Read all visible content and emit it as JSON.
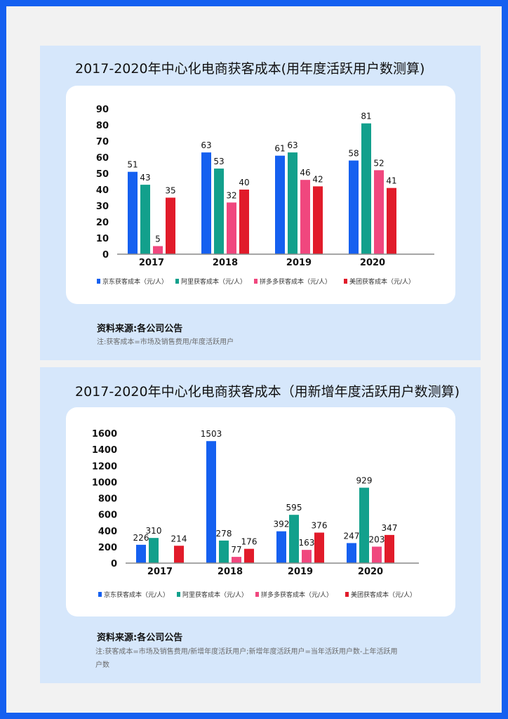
{
  "charts": [
    {
      "panel_title": "2017-2020年中心化电商获客成本(用年度活跃用户数测算)",
      "source": "资料来源:各公司公告",
      "note": "注:获客成本=市场及销售费用/年度活跃用户",
      "chart_data": {
        "type": "bar",
        "categories": [
          "2017",
          "2018",
          "2019",
          "2020"
        ],
        "ylim": [
          0,
          90
        ],
        "yticks": [
          0,
          10,
          20,
          30,
          40,
          50,
          60,
          70,
          80,
          90
        ],
        "legend_position": "bottom",
        "series": [
          {
            "name": "京东获客成本（元/人）",
            "color": "#1560f0",
            "values": [
              51,
              63,
              61,
              58
            ]
          },
          {
            "name": "阿里获客成本（元/人）",
            "color": "#12a08c",
            "values": [
              43,
              53,
              63,
              81
            ]
          },
          {
            "name": "拼多多获客成本（元/人）",
            "color": "#f0477e",
            "values": [
              5,
              32,
              46,
              52
            ]
          },
          {
            "name": "美团获客成本（元/人）",
            "color": "#e11b2a",
            "values": [
              35,
              40,
              42,
              41
            ]
          }
        ]
      }
    },
    {
      "panel_title": "2017-2020年中心化电商获客成本（用新增年度活跃用户数测算)",
      "source": "资料来源:各公司公告",
      "note": "注:获客成本=市场及销售费用/新增年度活跃用户;新增年度活跃用户=当年活跃用户数-上年活跃用户数",
      "chart_data": {
        "type": "bar",
        "categories": [
          "2017",
          "2018",
          "2019",
          "2020"
        ],
        "ylim": [
          0,
          1600
        ],
        "yticks": [
          0,
          200,
          400,
          600,
          800,
          1000,
          1200,
          1400,
          1600
        ],
        "legend_position": "bottom",
        "series": [
          {
            "name": "京东获客成本（元/人）",
            "color": "#1560f0",
            "values": [
              226,
              1503,
              392,
              247
            ]
          },
          {
            "name": "阿里获客成本（元/人）",
            "color": "#12a08c",
            "values": [
              310,
              278,
              595,
              929
            ]
          },
          {
            "name": "拼多多获客成本（元/人）",
            "color": "#f0477e",
            "values": [
              null,
              77,
              163,
              203
            ]
          },
          {
            "name": "美团获客成本（元/人）",
            "color": "#e11b2a",
            "values": [
              214,
              176,
              376,
              347
            ]
          }
        ]
      }
    }
  ]
}
